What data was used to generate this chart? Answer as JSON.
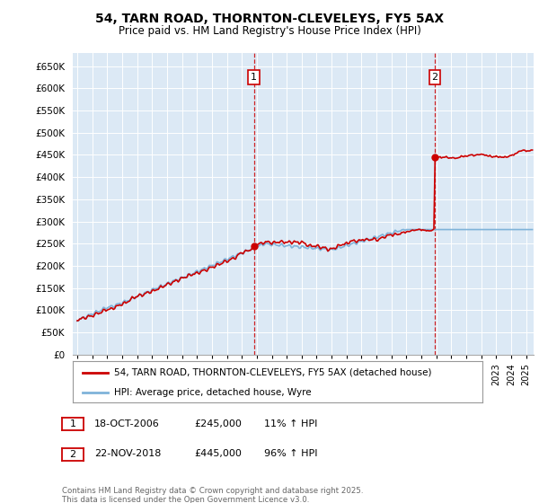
{
  "title": "54, TARN ROAD, THORNTON-CLEVELEYS, FY5 5AX",
  "subtitle": "Price paid vs. HM Land Registry's House Price Index (HPI)",
  "ylabel_ticks": [
    "£0",
    "£50K",
    "£100K",
    "£150K",
    "£200K",
    "£250K",
    "£300K",
    "£350K",
    "£400K",
    "£450K",
    "£500K",
    "£550K",
    "£600K",
    "£650K"
  ],
  "ylim": [
    0,
    680000
  ],
  "ytick_vals": [
    0,
    50000,
    100000,
    150000,
    200000,
    250000,
    300000,
    350000,
    400000,
    450000,
    500000,
    550000,
    600000,
    650000
  ],
  "xlim_start": 1994.7,
  "xlim_end": 2025.5,
  "background_color": "#dce9f5",
  "plot_bg": "#dce9f5",
  "sale1_x": 2006.8,
  "sale1_y": 245000,
  "sale2_x": 2018.9,
  "sale2_y": 445000,
  "vline_color": "#cc0000",
  "legend_house": "54, TARN ROAD, THORNTON-CLEVELEYS, FY5 5AX (detached house)",
  "legend_hpi": "HPI: Average price, detached house, Wyre",
  "note1_date": "18-OCT-2006",
  "note1_price": "£245,000",
  "note1_hpi": "11% ↑ HPI",
  "note2_date": "22-NOV-2018",
  "note2_price": "£445,000",
  "note2_hpi": "96% ↑ HPI",
  "footer": "Contains HM Land Registry data © Crown copyright and database right 2025.\nThis data is licensed under the Open Government Licence v3.0.",
  "line_color_house": "#cc0000",
  "line_color_hpi": "#7fb3d9"
}
